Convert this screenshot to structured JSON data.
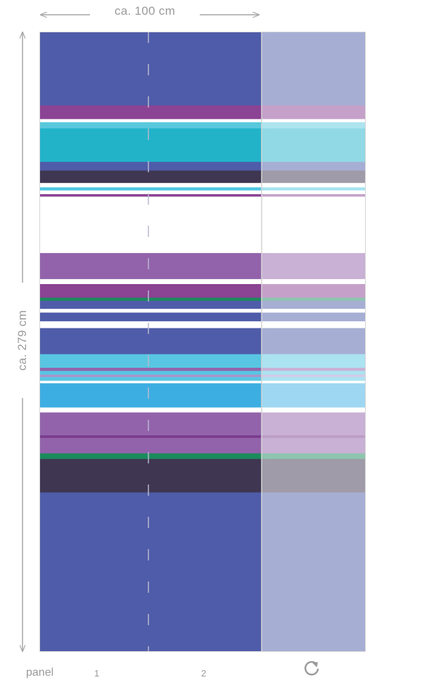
{
  "dimensions": {
    "width_label": "ca. 100 cm",
    "height_label": "ca. 279 cm"
  },
  "footer": {
    "panel_label": "panel",
    "panel_numbers": [
      "1",
      "2"
    ],
    "rotate_icon": "rotate-icon"
  },
  "colors": {
    "arrow": "#a6a6a6",
    "outline": "#d4d4d4",
    "seam": "#a9a9c4",
    "background": "#ffffff"
  },
  "stripes": [
    {
      "top": 0.0,
      "bottom": 0.119,
      "color": "#4f5ca9"
    },
    {
      "top": 0.119,
      "bottom": 0.141,
      "color": "#8b4393"
    },
    {
      "top": 0.141,
      "bottom": 0.146,
      "color": "#ffffff"
    },
    {
      "top": 0.146,
      "bottom": 0.156,
      "color": "#5ac8dc"
    },
    {
      "top": 0.156,
      "bottom": 0.21,
      "color": "#22b3c9"
    },
    {
      "top": 0.21,
      "bottom": 0.224,
      "color": "#4f5ca9"
    },
    {
      "top": 0.224,
      "bottom": 0.244,
      "color": "#3f3651"
    },
    {
      "top": 0.244,
      "bottom": 0.251,
      "color": "#ffffff"
    },
    {
      "top": 0.251,
      "bottom": 0.256,
      "color": "#4ec6e4"
    },
    {
      "top": 0.256,
      "bottom": 0.262,
      "color": "#ffffff"
    },
    {
      "top": 0.262,
      "bottom": 0.266,
      "color": "#8b4393"
    },
    {
      "top": 0.266,
      "bottom": 0.357,
      "color": "#ffffff"
    },
    {
      "top": 0.357,
      "bottom": 0.399,
      "color": "#9263aa"
    },
    {
      "top": 0.399,
      "bottom": 0.407,
      "color": "#ffffff"
    },
    {
      "top": 0.407,
      "bottom": 0.429,
      "color": "#8b4393"
    },
    {
      "top": 0.429,
      "bottom": 0.434,
      "color": "#1b8b5d"
    },
    {
      "top": 0.434,
      "bottom": 0.447,
      "color": "#4f5ca9"
    },
    {
      "top": 0.447,
      "bottom": 0.453,
      "color": "#ffffff"
    },
    {
      "top": 0.453,
      "bottom": 0.467,
      "color": "#4f5ca9"
    },
    {
      "top": 0.467,
      "bottom": 0.478,
      "color": "#ffffff"
    },
    {
      "top": 0.478,
      "bottom": 0.52,
      "color": "#4f5ca9"
    },
    {
      "top": 0.52,
      "bottom": 0.542,
      "color": "#58c6e2"
    },
    {
      "top": 0.542,
      "bottom": 0.547,
      "color": "#9263aa"
    },
    {
      "top": 0.547,
      "bottom": 0.553,
      "color": "#58c6e2"
    },
    {
      "top": 0.553,
      "bottom": 0.557,
      "color": "#a995cc"
    },
    {
      "top": 0.557,
      "bottom": 0.563,
      "color": "#58c6e2"
    },
    {
      "top": 0.563,
      "bottom": 0.567,
      "color": "#ffffff"
    },
    {
      "top": 0.567,
      "bottom": 0.606,
      "color": "#3daee2"
    },
    {
      "top": 0.606,
      "bottom": 0.614,
      "color": "#ffffff"
    },
    {
      "top": 0.614,
      "bottom": 0.651,
      "color": "#9263aa"
    },
    {
      "top": 0.651,
      "bottom": 0.655,
      "color": "#7a3a8d"
    },
    {
      "top": 0.655,
      "bottom": 0.68,
      "color": "#9263aa"
    },
    {
      "top": 0.68,
      "bottom": 0.689,
      "color": "#1b8b5d"
    },
    {
      "top": 0.689,
      "bottom": 0.743,
      "color": "#3f3651"
    },
    {
      "top": 0.743,
      "bottom": 1.0,
      "color": "#4f5ca9"
    }
  ]
}
